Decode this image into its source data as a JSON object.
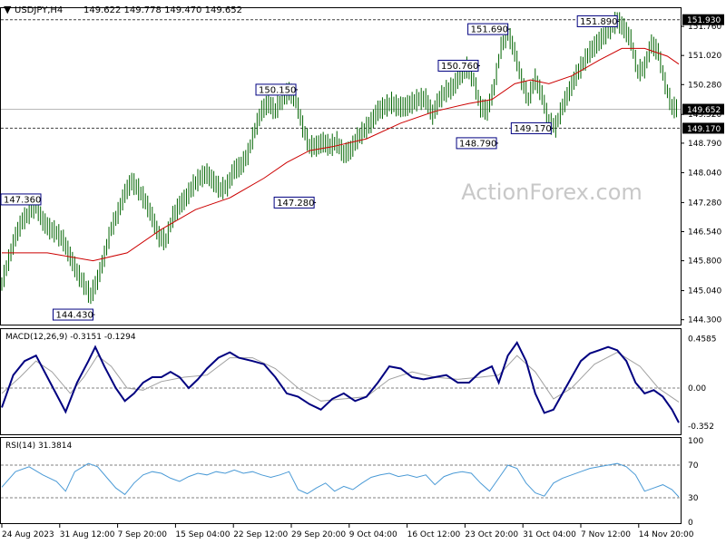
{
  "header": {
    "symbol": "USDJPY,H4",
    "ohlc": "149.622 149.778 149.470 149.652",
    "arrow_icon": "triangle-down-icon"
  },
  "watermark": "ActionForex.com",
  "colors": {
    "candle": "#006400",
    "ma": "#cc0000",
    "macd": "#000080",
    "macd_signal": "#a0a0a0",
    "rsi": "#4a9ad6",
    "level_line": "#404040",
    "label_border": "#000080"
  },
  "chart_data": [
    {
      "type": "line",
      "name": "price",
      "ylim": [
        144.2,
        152.2
      ],
      "yticks": [
        "151.760",
        "151.020",
        "150.280",
        "149.520",
        "148.790",
        "148.040",
        "147.280",
        "146.540",
        "145.800",
        "145.040",
        "144.300"
      ],
      "current_price_label": "149.652",
      "current_price": 149.652,
      "support_label": "149.170",
      "resistance_label": "151.930",
      "support_level": 149.17,
      "resistance_level": 151.93,
      "x_dates": [
        "24 Aug 2023",
        "31 Aug 12:00",
        "7 Sep 20:00",
        "15 Sep 04:00",
        "22 Sep 12:00",
        "29 Sep 20:00",
        "9 Oct 04:00",
        "16 Oct 12:00",
        "23 Oct 20:00",
        "31 Oct 04:00",
        "7 Nov 12:00",
        "14 Nov 20:00"
      ],
      "price_path": [
        [
          0,
          145.2
        ],
        [
          3,
          145.8
        ],
        [
          6,
          146.4
        ],
        [
          9,
          146.8
        ],
        [
          12,
          147.0
        ],
        [
          15,
          147.2
        ],
        [
          18,
          146.8
        ],
        [
          21,
          146.6
        ],
        [
          24,
          146.5
        ],
        [
          27,
          146.3
        ],
        [
          30,
          145.9
        ],
        [
          33,
          145.5
        ],
        [
          36,
          145.2
        ],
        [
          39,
          144.9
        ],
        [
          42,
          145.3
        ],
        [
          45,
          145.9
        ],
        [
          48,
          146.6
        ],
        [
          51,
          147.0
        ],
        [
          54,
          147.5
        ],
        [
          57,
          147.8
        ],
        [
          60,
          147.6
        ],
        [
          63,
          147.3
        ],
        [
          66,
          146.9
        ],
        [
          69,
          146.4
        ],
        [
          72,
          146.3
        ],
        [
          75,
          146.9
        ],
        [
          78,
          147.2
        ],
        [
          81,
          147.4
        ],
        [
          84,
          147.7
        ],
        [
          87,
          147.9
        ],
        [
          90,
          148.0
        ],
        [
          93,
          147.8
        ],
        [
          96,
          147.6
        ],
        [
          99,
          147.7
        ],
        [
          102,
          148.1
        ],
        [
          105,
          148.2
        ],
        [
          108,
          148.5
        ],
        [
          111,
          149.1
        ],
        [
          114,
          149.6
        ],
        [
          117,
          149.8
        ],
        [
          120,
          149.6
        ],
        [
          123,
          149.9
        ],
        [
          126,
          150.1
        ],
        [
          129,
          149.9
        ],
        [
          132,
          149.2
        ],
        [
          135,
          148.7
        ],
        [
          138,
          148.7
        ],
        [
          141,
          148.8
        ],
        [
          144,
          148.7
        ],
        [
          147,
          148.8
        ],
        [
          150,
          148.5
        ],
        [
          153,
          148.6
        ],
        [
          156,
          148.9
        ],
        [
          159,
          149.1
        ],
        [
          162,
          149.3
        ],
        [
          165,
          149.6
        ],
        [
          168,
          149.7
        ],
        [
          171,
          149.8
        ],
        [
          174,
          149.7
        ],
        [
          177,
          149.7
        ],
        [
          180,
          149.8
        ],
        [
          183,
          149.9
        ],
        [
          186,
          149.9
        ],
        [
          189,
          149.5
        ],
        [
          192,
          149.9
        ],
        [
          195,
          150.1
        ],
        [
          198,
          150.2
        ],
        [
          201,
          150.5
        ],
        [
          204,
          150.7
        ],
        [
          207,
          150.4
        ],
        [
          210,
          149.7
        ],
        [
          213,
          149.6
        ],
        [
          216,
          150.2
        ],
        [
          219,
          151.2
        ],
        [
          222,
          151.6
        ],
        [
          225,
          151.1
        ],
        [
          228,
          150.4
        ],
        [
          231,
          149.9
        ],
        [
          234,
          150.4
        ],
        [
          237,
          150.0
        ],
        [
          240,
          149.3
        ],
        [
          243,
          149.2
        ],
        [
          246,
          149.7
        ],
        [
          249,
          150.1
        ],
        [
          252,
          150.5
        ],
        [
          255,
          150.8
        ],
        [
          258,
          151.1
        ],
        [
          261,
          151.3
        ],
        [
          264,
          151.5
        ],
        [
          267,
          151.7
        ],
        [
          270,
          151.9
        ],
        [
          273,
          151.7
        ],
        [
          276,
          151.4
        ],
        [
          279,
          150.6
        ],
        [
          282,
          150.7
        ],
        [
          285,
          151.3
        ],
        [
          288,
          151.1
        ],
        [
          291,
          150.3
        ],
        [
          294,
          149.7
        ],
        [
          297,
          149.65
        ]
      ],
      "ma_path": [
        [
          0,
          146.0
        ],
        [
          20,
          146.0
        ],
        [
          40,
          145.8
        ],
        [
          55,
          146.0
        ],
        [
          70,
          146.6
        ],
        [
          85,
          147.1
        ],
        [
          100,
          147.4
        ],
        [
          115,
          147.9
        ],
        [
          125,
          148.3
        ],
        [
          135,
          148.6
        ],
        [
          145,
          148.7
        ],
        [
          160,
          148.9
        ],
        [
          175,
          149.3
        ],
        [
          190,
          149.6
        ],
        [
          205,
          149.8
        ],
        [
          215,
          149.9
        ],
        [
          225,
          150.3
        ],
        [
          232,
          150.4
        ],
        [
          240,
          150.3
        ],
        [
          250,
          150.5
        ],
        [
          262,
          150.9
        ],
        [
          272,
          151.2
        ],
        [
          282,
          151.2
        ],
        [
          292,
          151.0
        ],
        [
          297,
          150.8
        ]
      ],
      "annotations": [
        {
          "text": "147.360",
          "x": 4,
          "value": 147.36
        },
        {
          "text": "144.430",
          "x": 40,
          "value": 144.43
        },
        {
          "text": "150.150",
          "x": 129,
          "value": 150.15
        },
        {
          "text": "147.280",
          "x": 137,
          "value": 147.28
        },
        {
          "text": "150.760",
          "x": 209,
          "value": 150.76
        },
        {
          "text": "151.690",
          "x": 222,
          "value": 151.69
        },
        {
          "text": "148.790",
          "x": 217,
          "value": 148.79
        },
        {
          "text": "149.170",
          "x": 241,
          "value": 149.17
        },
        {
          "text": "151.890",
          "x": 270,
          "value": 151.89
        }
      ]
    },
    {
      "type": "line",
      "name": "macd",
      "label": "MACD(12,26,9) -0.3151 -0.1294",
      "ylim": [
        -0.42,
        0.52
      ],
      "yticks": [
        "0.4585",
        "0.00",
        "-0.352"
      ],
      "zero_label": "0.00",
      "macd_path": [
        [
          0,
          -0.18
        ],
        [
          5,
          0.12
        ],
        [
          10,
          0.25
        ],
        [
          15,
          0.3
        ],
        [
          20,
          0.1
        ],
        [
          25,
          -0.1
        ],
        [
          28,
          -0.22
        ],
        [
          33,
          0.05
        ],
        [
          38,
          0.25
        ],
        [
          41,
          0.38
        ],
        [
          45,
          0.2
        ],
        [
          50,
          0.0
        ],
        [
          54,
          -0.12
        ],
        [
          58,
          -0.05
        ],
        [
          62,
          0.05
        ],
        [
          66,
          0.1
        ],
        [
          70,
          0.1
        ],
        [
          74,
          0.15
        ],
        [
          78,
          0.1
        ],
        [
          82,
          0.0
        ],
        [
          86,
          0.08
        ],
        [
          90,
          0.18
        ],
        [
          95,
          0.28
        ],
        [
          100,
          0.33
        ],
        [
          104,
          0.28
        ],
        [
          110,
          0.25
        ],
        [
          115,
          0.22
        ],
        [
          120,
          0.1
        ],
        [
          125,
          -0.05
        ],
        [
          130,
          -0.08
        ],
        [
          135,
          -0.15
        ],
        [
          140,
          -0.2
        ],
        [
          145,
          -0.1
        ],
        [
          150,
          -0.05
        ],
        [
          155,
          -0.12
        ],
        [
          160,
          -0.08
        ],
        [
          165,
          0.05
        ],
        [
          170,
          0.2
        ],
        [
          175,
          0.18
        ],
        [
          180,
          0.1
        ],
        [
          185,
          0.08
        ],
        [
          190,
          0.1
        ],
        [
          195,
          0.12
        ],
        [
          200,
          0.05
        ],
        [
          205,
          0.05
        ],
        [
          210,
          0.15
        ],
        [
          215,
          0.2
        ],
        [
          218,
          0.05
        ],
        [
          222,
          0.3
        ],
        [
          226,
          0.42
        ],
        [
          230,
          0.25
        ],
        [
          234,
          -0.05
        ],
        [
          238,
          -0.23
        ],
        [
          242,
          -0.2
        ],
        [
          246,
          -0.05
        ],
        [
          250,
          0.1
        ],
        [
          254,
          0.25
        ],
        [
          258,
          0.32
        ],
        [
          262,
          0.35
        ],
        [
          266,
          0.38
        ],
        [
          270,
          0.35
        ],
        [
          274,
          0.25
        ],
        [
          278,
          0.05
        ],
        [
          282,
          -0.05
        ],
        [
          286,
          -0.02
        ],
        [
          290,
          -0.08
        ],
        [
          294,
          -0.2
        ],
        [
          297,
          -0.32
        ]
      ],
      "signal_path": [
        [
          0,
          -0.05
        ],
        [
          8,
          0.1
        ],
        [
          15,
          0.25
        ],
        [
          22,
          0.15
        ],
        [
          30,
          -0.05
        ],
        [
          36,
          0.1
        ],
        [
          42,
          0.3
        ],
        [
          48,
          0.2
        ],
        [
          55,
          0.0
        ],
        [
          62,
          -0.02
        ],
        [
          70,
          0.06
        ],
        [
          80,
          0.1
        ],
        [
          90,
          0.12
        ],
        [
          100,
          0.28
        ],
        [
          110,
          0.28
        ],
        [
          120,
          0.18
        ],
        [
          130,
          0.0
        ],
        [
          140,
          -0.12
        ],
        [
          150,
          -0.1
        ],
        [
          160,
          -0.08
        ],
        [
          170,
          0.08
        ],
        [
          180,
          0.15
        ],
        [
          190,
          0.1
        ],
        [
          200,
          0.08
        ],
        [
          210,
          0.1
        ],
        [
          218,
          0.12
        ],
        [
          226,
          0.3
        ],
        [
          234,
          0.15
        ],
        [
          242,
          -0.1
        ],
        [
          250,
          0.0
        ],
        [
          260,
          0.22
        ],
        [
          270,
          0.33
        ],
        [
          280,
          0.2
        ],
        [
          288,
          0.0
        ],
        [
          297,
          -0.13
        ]
      ]
    },
    {
      "type": "line",
      "name": "rsi",
      "label": "RSI(14) 31.3814",
      "ylim": [
        0,
        100
      ],
      "yticks": [
        "100",
        "70",
        "30",
        "0"
      ],
      "rsi_path": [
        [
          0,
          43
        ],
        [
          6,
          62
        ],
        [
          12,
          68
        ],
        [
          18,
          58
        ],
        [
          24,
          50
        ],
        [
          28,
          38
        ],
        [
          32,
          62
        ],
        [
          38,
          72
        ],
        [
          42,
          68
        ],
        [
          46,
          55
        ],
        [
          50,
          42
        ],
        [
          54,
          34
        ],
        [
          58,
          48
        ],
        [
          62,
          58
        ],
        [
          66,
          62
        ],
        [
          70,
          60
        ],
        [
          74,
          54
        ],
        [
          78,
          50
        ],
        [
          82,
          56
        ],
        [
          86,
          60
        ],
        [
          90,
          58
        ],
        [
          94,
          62
        ],
        [
          98,
          60
        ],
        [
          102,
          64
        ],
        [
          106,
          60
        ],
        [
          110,
          62
        ],
        [
          114,
          58
        ],
        [
          118,
          55
        ],
        [
          122,
          58
        ],
        [
          126,
          62
        ],
        [
          130,
          40
        ],
        [
          134,
          35
        ],
        [
          138,
          42
        ],
        [
          142,
          48
        ],
        [
          146,
          38
        ],
        [
          150,
          44
        ],
        [
          154,
          40
        ],
        [
          158,
          48
        ],
        [
          162,
          55
        ],
        [
          166,
          58
        ],
        [
          170,
          60
        ],
        [
          174,
          56
        ],
        [
          178,
          58
        ],
        [
          182,
          55
        ],
        [
          186,
          58
        ],
        [
          190,
          46
        ],
        [
          194,
          56
        ],
        [
          198,
          60
        ],
        [
          202,
          62
        ],
        [
          206,
          60
        ],
        [
          210,
          48
        ],
        [
          214,
          38
        ],
        [
          218,
          54
        ],
        [
          222,
          70
        ],
        [
          226,
          66
        ],
        [
          230,
          48
        ],
        [
          234,
          36
        ],
        [
          238,
          32
        ],
        [
          242,
          48
        ],
        [
          246,
          54
        ],
        [
          250,
          58
        ],
        [
          254,
          62
        ],
        [
          258,
          66
        ],
        [
          262,
          68
        ],
        [
          266,
          70
        ],
        [
          270,
          72
        ],
        [
          274,
          68
        ],
        [
          278,
          58
        ],
        [
          282,
          38
        ],
        [
          286,
          42
        ],
        [
          290,
          46
        ],
        [
          294,
          40
        ],
        [
          297,
          31
        ]
      ]
    }
  ]
}
